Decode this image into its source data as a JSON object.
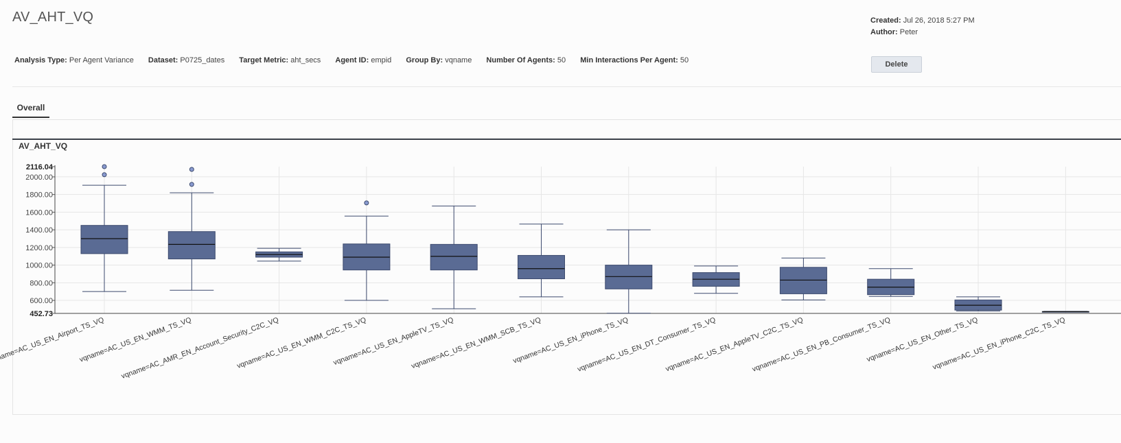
{
  "page": {
    "title": "AV_AHT_VQ",
    "created_label": "Created:",
    "created_value": "Jul 26, 2018 5:27 PM",
    "author_label": "Author:",
    "author_value": "Peter",
    "delete_label": "Delete"
  },
  "params": [
    {
      "label": "Analysis Type:",
      "value": "Per Agent Variance"
    },
    {
      "label": "Dataset:",
      "value": "P0725_dates"
    },
    {
      "label": "Target Metric:",
      "value": "aht_secs"
    },
    {
      "label": "Agent ID:",
      "value": "empid"
    },
    {
      "label": "Group By:",
      "value": "vqname"
    },
    {
      "label": "Number Of Agents:",
      "value": "50"
    },
    {
      "label": "Min Interactions Per Agent:",
      "value": "50"
    }
  ],
  "tabs": [
    {
      "label": "Overall"
    }
  ],
  "colors": {
    "box_fill": "#5a6b94",
    "box_stroke": "#3c4a6e",
    "grid": "#e6e6e6"
  },
  "chart_data": {
    "type": "box",
    "title": "AV_AHT_VQ",
    "ylim": [
      452.73,
      2116.04
    ],
    "y_ticks": [
      "2116.04",
      "2000.00",
      "1800.00",
      "1600.00",
      "1400.00",
      "1200.00",
      "1000.00",
      "800.00",
      "600.00",
      "452.73"
    ],
    "categories": [
      "vqname=AC_US_EN_Airport_TS_VQ",
      "vqname=AC_US_EN_WMM_TS_VQ",
      "vqname=AC_AMR_EN_Account_Security_C2C_VQ",
      "vqname=AC_US_EN_WMM_C2C_TS_VQ",
      "vqname=AC_US_EN_AppleTV_TS_VQ",
      "vqname=AC_US_EN_WMM_SCB_TS_VQ",
      "vqname=AC_US_EN_iPhone_TS_VQ",
      "vqname=AC_US_EN_DT_Consumer_TS_VQ",
      "vqname=AC_US_EN_AppleTV_C2C_TS_VQ",
      "vqname=AC_US_EN_PB_Consumer_TS_VQ",
      "vqname=AC_US_EN_Other_TS_VQ",
      "vqname=AC_US_EN_iPhone_C2C_TS_VQ"
    ],
    "boxes": [
      {
        "min": 700,
        "q1": 1130,
        "median": 1300,
        "q3": 1450,
        "max": 1905,
        "outliers": [
          2116,
          2025
        ]
      },
      {
        "min": 715,
        "q1": 1070,
        "median": 1235,
        "q3": 1380,
        "max": 1820,
        "outliers": [
          2085,
          1915
        ]
      },
      {
        "min": 1045,
        "q1": 1090,
        "median": 1120,
        "q3": 1150,
        "max": 1190,
        "outliers": []
      },
      {
        "min": 600,
        "q1": 945,
        "median": 1090,
        "q3": 1240,
        "max": 1555,
        "outliers": [
          1705
        ]
      },
      {
        "min": 505,
        "q1": 945,
        "median": 1100,
        "q3": 1235,
        "max": 1670,
        "outliers": []
      },
      {
        "min": 640,
        "q1": 845,
        "median": 960,
        "q3": 1110,
        "max": 1465,
        "outliers": []
      },
      {
        "min": 455,
        "q1": 730,
        "median": 870,
        "q3": 1000,
        "max": 1400,
        "outliers": []
      },
      {
        "min": 680,
        "q1": 760,
        "median": 840,
        "q3": 915,
        "max": 990,
        "outliers": []
      },
      {
        "min": 605,
        "q1": 675,
        "median": 830,
        "q3": 975,
        "max": 1080,
        "outliers": []
      },
      {
        "min": 645,
        "q1": 665,
        "median": 750,
        "q3": 840,
        "max": 960,
        "outliers": []
      },
      {
        "min": 480,
        "q1": 490,
        "median": 545,
        "q3": 605,
        "max": 640,
        "outliers": []
      },
      {
        "min": 468,
        "q1": 470,
        "median": 472,
        "q3": 474,
        "max": 476,
        "outliers": []
      }
    ]
  }
}
